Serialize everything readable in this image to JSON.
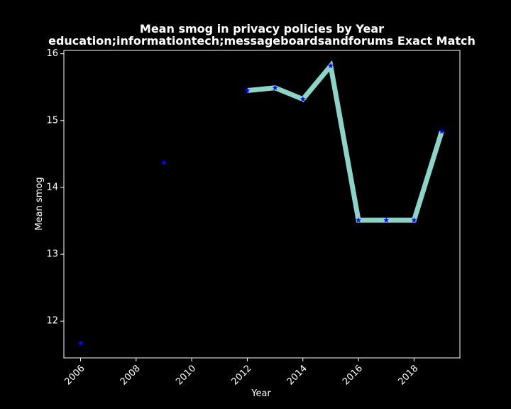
{
  "chart_data": {
    "type": "line",
    "title": "Mean smog in privacy policies by Year",
    "subtitle": "education;informationtech;messageboardsandforums Exact Match",
    "xlabel": "Year",
    "ylabel": "Mean smog",
    "xlim": [
      2005.4,
      2019.65
    ],
    "ylim": [
      11.45,
      16.05
    ],
    "x_ticks": [
      2006,
      2008,
      2010,
      2012,
      2014,
      2016,
      2018
    ],
    "y_ticks": [
      12,
      13,
      14,
      15,
      16
    ],
    "grid": false,
    "background": "#000000",
    "series": [
      {
        "line_color": "#8dd3c7",
        "marker_color": "#0000ff",
        "marker": "star",
        "points": [
          {
            "x": 2006,
            "y": 11.67
          },
          {
            "x": 2009,
            "y": 14.37
          },
          {
            "x": 2012,
            "y": 15.45
          },
          {
            "x": 2013,
            "y": 15.49
          },
          {
            "x": 2014,
            "y": 15.32
          },
          {
            "x": 2015,
            "y": 15.82
          },
          {
            "x": 2016,
            "y": 13.51
          },
          {
            "x": 2017,
            "y": 13.51
          },
          {
            "x": 2018,
            "y": 13.51
          },
          {
            "x": 2019,
            "y": 14.84
          }
        ],
        "line_segments": [
          [
            2012,
            2013,
            2014,
            2015,
            2016,
            2017,
            2018,
            2019
          ]
        ]
      }
    ]
  }
}
